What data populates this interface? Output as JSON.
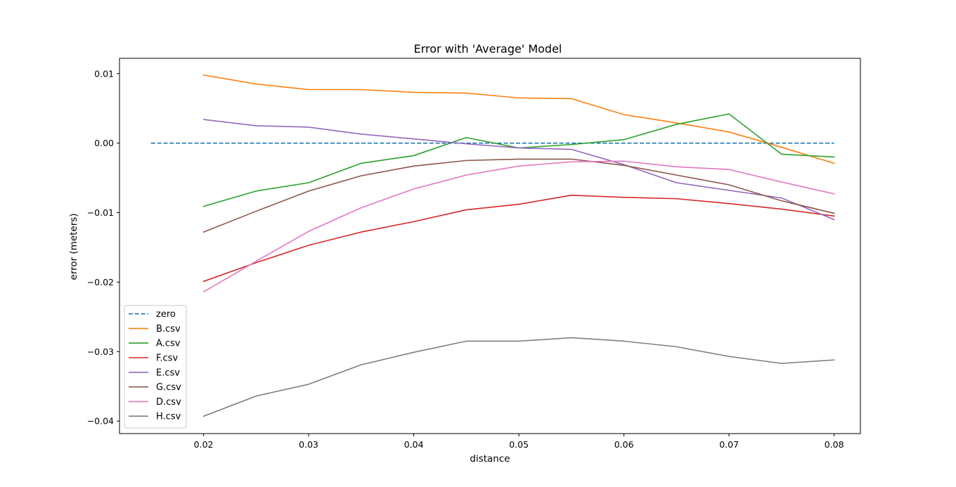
{
  "chart_data": {
    "type": "line",
    "title": "Error with 'Average' Model",
    "xlabel": "distance",
    "ylabel": "error (meters)",
    "xlim": [
      0.012,
      0.0825
    ],
    "ylim": [
      -0.0418,
      0.0122
    ],
    "xticks": [
      0.02,
      0.03,
      0.04,
      0.05,
      0.06,
      0.07,
      0.08
    ],
    "xtick_labels": [
      "0.02",
      "0.03",
      "0.04",
      "0.05",
      "0.06",
      "0.07",
      "0.08"
    ],
    "yticks": [
      0.01,
      0.0,
      -0.01,
      -0.02,
      -0.03,
      -0.04
    ],
    "ytick_labels": [
      "0.01",
      "0.00",
      "−0.01",
      "−0.02",
      "−0.03",
      "−0.04"
    ],
    "grid": false,
    "legend_position": "lower-left",
    "series": [
      {
        "name": "zero",
        "color": "#1f77b4",
        "dashed": true,
        "x": [
          0.015,
          0.08
        ],
        "values": [
          0.0,
          0.0
        ]
      },
      {
        "name": "B.csv",
        "color": "#ff7f0e",
        "x": [
          0.02,
          0.025,
          0.03,
          0.035,
          0.04,
          0.045,
          0.05,
          0.055,
          0.06,
          0.065,
          0.07,
          0.075,
          0.08
        ],
        "values": [
          0.0098,
          0.0085,
          0.0077,
          0.0077,
          0.0073,
          0.0072,
          0.0065,
          0.0064,
          0.0041,
          0.0029,
          0.0016,
          -0.0006,
          -0.0029
        ]
      },
      {
        "name": "A.csv",
        "color": "#2ca02c",
        "x": [
          0.02,
          0.025,
          0.03,
          0.035,
          0.04,
          0.045,
          0.05,
          0.055,
          0.06,
          0.065,
          0.07,
          0.075,
          0.08
        ],
        "values": [
          -0.0091,
          -0.0069,
          -0.0057,
          -0.0029,
          -0.0018,
          0.0008,
          -0.0007,
          -0.0002,
          0.0005,
          0.0027,
          0.0042,
          -0.0016,
          -0.002
        ]
      },
      {
        "name": "F.csv",
        "color": "#d62728",
        "x": [
          0.02,
          0.025,
          0.03,
          0.035,
          0.04,
          0.045,
          0.05,
          0.055,
          0.06,
          0.065,
          0.07,
          0.075,
          0.08
        ],
        "values": [
          -0.0199,
          -0.0172,
          -0.0147,
          -0.0128,
          -0.0113,
          -0.0096,
          -0.0088,
          -0.0075,
          -0.0078,
          -0.008,
          -0.0087,
          -0.0095,
          -0.0105
        ]
      },
      {
        "name": "E.csv",
        "color": "#9467bd",
        "x": [
          0.02,
          0.025,
          0.03,
          0.035,
          0.04,
          0.045,
          0.05,
          0.055,
          0.06,
          0.065,
          0.07,
          0.075,
          0.08
        ],
        "values": [
          0.0034,
          0.0025,
          0.0023,
          0.0013,
          0.0006,
          -0.0001,
          -0.0007,
          -0.0009,
          -0.0031,
          -0.0057,
          -0.0068,
          -0.0079,
          -0.011
        ]
      },
      {
        "name": "G.csv",
        "color": "#8c564b",
        "x": [
          0.02,
          0.025,
          0.03,
          0.035,
          0.04,
          0.045,
          0.05,
          0.055,
          0.06,
          0.065,
          0.07,
          0.075,
          0.08
        ],
        "values": [
          -0.0128,
          -0.0098,
          -0.0069,
          -0.0047,
          -0.0033,
          -0.0025,
          -0.0023,
          -0.0023,
          -0.0032,
          -0.0046,
          -0.006,
          -0.0083,
          -0.0101
        ]
      },
      {
        "name": "D.csv",
        "color": "#e377c2",
        "x": [
          0.02,
          0.025,
          0.03,
          0.035,
          0.04,
          0.045,
          0.05,
          0.055,
          0.06,
          0.065,
          0.07,
          0.075,
          0.08
        ],
        "values": [
          -0.0214,
          -0.017,
          -0.0127,
          -0.0093,
          -0.0066,
          -0.0046,
          -0.0033,
          -0.0027,
          -0.0026,
          -0.0034,
          -0.0038,
          -0.0056,
          -0.0073
        ]
      },
      {
        "name": "H.csv",
        "color": "#7f7f7f",
        "x": [
          0.02,
          0.025,
          0.03,
          0.035,
          0.04,
          0.045,
          0.05,
          0.055,
          0.06,
          0.065,
          0.07,
          0.075,
          0.08
        ],
        "values": [
          -0.0393,
          -0.0364,
          -0.0347,
          -0.0319,
          -0.0301,
          -0.0285,
          -0.0285,
          -0.028,
          -0.0285,
          -0.0293,
          -0.0307,
          -0.0317,
          -0.0312
        ]
      }
    ]
  }
}
